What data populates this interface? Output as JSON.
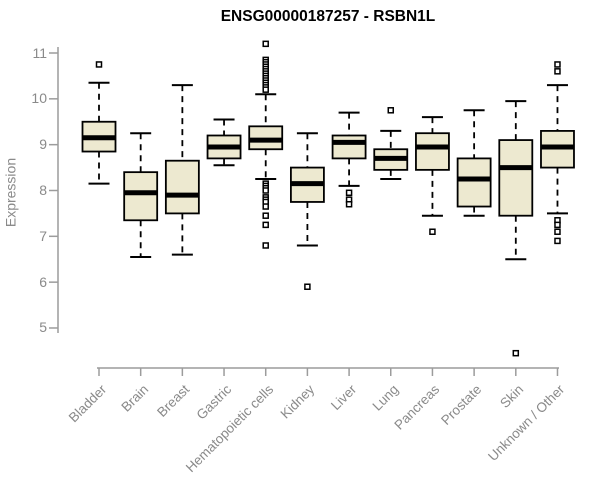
{
  "chart_data": {
    "type": "boxplot",
    "title": "ENSG00000187257 - RSBN1L",
    "ylabel": "Expression",
    "xlabel": "",
    "ylim": [
      5,
      11
    ],
    "yticks": [
      5,
      6,
      7,
      8,
      9,
      10,
      11
    ],
    "grid": false,
    "legend": null,
    "categories": [
      "Bladder",
      "Brain",
      "Breast",
      "Gastric",
      "Hematopoietic cells",
      "Kidney",
      "Liver",
      "Lung",
      "Pancreas",
      "Prostate",
      "Skin",
      "Unknown / Other"
    ],
    "series": [
      {
        "name": "Bladder",
        "whisker_low": 8.15,
        "q1": 8.85,
        "median": 9.15,
        "q3": 9.5,
        "whisker_high": 10.35,
        "outliers": [
          10.75
        ]
      },
      {
        "name": "Brain",
        "whisker_low": 6.55,
        "q1": 7.35,
        "median": 7.95,
        "q3": 8.4,
        "whisker_high": 9.25,
        "outliers": []
      },
      {
        "name": "Breast",
        "whisker_low": 6.6,
        "q1": 7.5,
        "median": 7.9,
        "q3": 8.65,
        "whisker_high": 10.3,
        "outliers": []
      },
      {
        "name": "Gastric",
        "whisker_low": 8.55,
        "q1": 8.7,
        "median": 8.95,
        "q3": 9.2,
        "whisker_high": 9.55,
        "outliers": []
      },
      {
        "name": "Hematopoietic cells",
        "whisker_low": 8.25,
        "q1": 8.9,
        "median": 9.1,
        "q3": 9.4,
        "whisker_high": 10.1,
        "outliers": [
          11.2,
          10.85,
          10.8,
          10.75,
          10.7,
          10.65,
          10.6,
          10.55,
          10.5,
          10.45,
          10.4,
          10.35,
          10.3,
          10.25,
          10.2,
          8.15,
          8.1,
          8.05,
          8.0,
          7.85,
          7.8,
          7.75,
          7.65,
          7.45,
          7.25,
          6.8
        ]
      },
      {
        "name": "Kidney",
        "whisker_low": 6.8,
        "q1": 7.75,
        "median": 8.15,
        "q3": 8.5,
        "whisker_high": 9.25,
        "outliers": [
          5.9
        ]
      },
      {
        "name": "Liver",
        "whisker_low": 8.1,
        "q1": 8.7,
        "median": 9.05,
        "q3": 9.2,
        "whisker_high": 9.7,
        "outliers": [
          7.95,
          7.8,
          7.7
        ]
      },
      {
        "name": "Lung",
        "whisker_low": 8.25,
        "q1": 8.45,
        "median": 8.7,
        "q3": 8.9,
        "whisker_high": 9.3,
        "outliers": [
          9.75
        ]
      },
      {
        "name": "Pancreas",
        "whisker_low": 7.45,
        "q1": 8.45,
        "median": 8.95,
        "q3": 9.25,
        "whisker_high": 9.6,
        "outliers": [
          7.1
        ]
      },
      {
        "name": "Prostate",
        "whisker_low": 7.45,
        "q1": 7.65,
        "median": 8.25,
        "q3": 8.7,
        "whisker_high": 9.75,
        "outliers": []
      },
      {
        "name": "Skin",
        "whisker_low": 6.5,
        "q1": 7.45,
        "median": 8.5,
        "q3": 9.1,
        "whisker_high": 9.95,
        "outliers": [
          4.45
        ]
      },
      {
        "name": "Unknown / Other",
        "whisker_low": 7.5,
        "q1": 8.5,
        "median": 8.95,
        "q3": 9.3,
        "whisker_high": 10.3,
        "outliers": [
          10.75,
          10.6,
          7.35,
          7.25,
          7.1,
          6.9
        ]
      }
    ],
    "colors": {
      "box_fill": "#EDE9D0",
      "box_line": "#000000",
      "axis": "#9C9C9C",
      "tick_text": "#8A8A8A",
      "title_text": "#000000"
    }
  }
}
